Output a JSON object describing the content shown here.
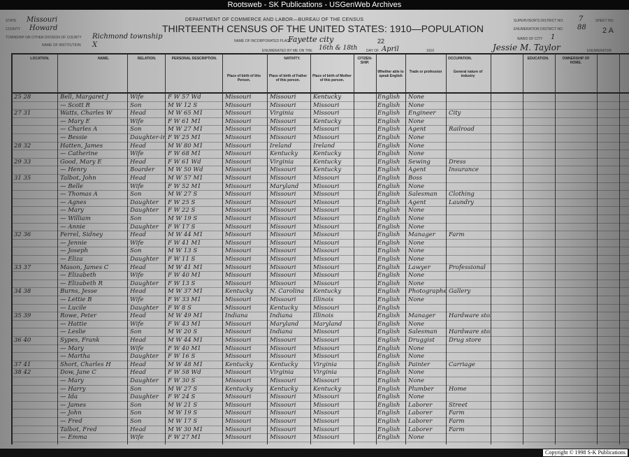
{
  "window": {
    "title": "Rootsweb - SK Publications - USGenWeb Archives",
    "copyright": "Copyright © 1998 S-K Publications"
  },
  "form": {
    "department": "DEPARTMENT OF COMMERCE AND LABOR—BUREAU OF THE CENSUS",
    "title": "THIRTEENTH CENSUS OF THE UNITED STATES: 1910—POPULATION",
    "state_label": "STATE",
    "state": "Missouri",
    "county_label": "COUNTY",
    "county": "Howard",
    "township_label": "TOWNSHIP OR OTHER DIVISION OF COUNTY",
    "township": "Richmond township",
    "institution_label": "NAME OF INSTITUTION",
    "institution": "X",
    "place_label": "NAME OF INCORPORATED PLACE",
    "place": "Fayette city",
    "page_number": "22",
    "enumerated_label": "ENUMERATED BY ME ON THE",
    "enumerated_days": "16th & 18th",
    "day_of_label": "DAY OF",
    "month": "April",
    "year": "1910",
    "enumerator": "Jessie M. Taylor",
    "enumerator_label": "ENUMERATOR",
    "supervisor_label": "SUPERVISOR'S DISTRICT NO.",
    "supervisor": "7",
    "ed_label": "ENUMERATION DISTRICT NO.",
    "ed": "88",
    "ward_label": "WARD OF CITY",
    "ward": "1",
    "sheet_label": "SHEET NO.",
    "sheet": "2 A"
  },
  "headers": {
    "location": "LOCATION.",
    "name": "NAME.",
    "relation": "RELATION.",
    "personal": "PERSONAL DESCRIPTION.",
    "nativity": "NATIVITY.",
    "citizenship": "CITIZEN-SHIP.",
    "language": "Whether able to speak English",
    "occupation": "OCCUPATION.",
    "education": "EDUCATION.",
    "ownership": "OWNERSHIP OF HOME.",
    "nat_person": "Place of birth of this Person.",
    "nat_father": "Place of birth of Father of this person.",
    "nat_mother": "Place of birth of Mother of this person.",
    "trade": "Trade or profession",
    "industry": "General nature of industry"
  },
  "rows": [
    [
      "25 28",
      "Bell, Margaret J",
      "Wife",
      "F W 57 Wd",
      "Missouri",
      "Missouri",
      "Kentucky",
      "English",
      "None",
      ""
    ],
    [
      "",
      "— Scott R",
      "Son",
      "M W 12 S",
      "Missouri",
      "Missouri",
      "Missouri",
      "English",
      "None",
      ""
    ],
    [
      "27 31",
      "Watts, Charles W",
      "Head",
      "M W 65 M1",
      "Missouri",
      "Virginia",
      "Missouri",
      "English",
      "Engineer",
      "City"
    ],
    [
      "",
      "— Mary E",
      "Wife",
      "F W 61 M1",
      "Missouri",
      "Missouri",
      "Kentucky",
      "English",
      "None",
      ""
    ],
    [
      "",
      "— Charles A",
      "Son",
      "M W 27 M1",
      "Missouri",
      "Missouri",
      "Missouri",
      "English",
      "Agent",
      "Railroad"
    ],
    [
      "",
      "— Bessie",
      "Daughter-in-law",
      "F W 25 M1",
      "Missouri",
      "Missouri",
      "Missouri",
      "English",
      "None",
      ""
    ],
    [
      "28 32",
      "Hatten, James",
      "Head",
      "M W 80 M1",
      "Missouri",
      "Ireland",
      "Ireland",
      "English",
      "None",
      ""
    ],
    [
      "",
      "— Catherine",
      "Wife",
      "F W 68 M1",
      "Missouri",
      "Kentucky",
      "Kentucky",
      "English",
      "None",
      ""
    ],
    [
      "29 33",
      "Good, Mary E",
      "Head",
      "F W 61 Wd",
      "Missouri",
      "Virginia",
      "Kentucky",
      "English",
      "Sewing",
      "Dress"
    ],
    [
      "",
      "— Henry",
      "Boarder",
      "M W 50 Wd",
      "Missouri",
      "Missouri",
      "Kentucky",
      "English",
      "Agent",
      "Insurance"
    ],
    [
      "31 35",
      "Talbot, John",
      "Head",
      "M W 57 M1",
      "Missouri",
      "Missouri",
      "Missouri",
      "English",
      "Boss",
      ""
    ],
    [
      "",
      "— Belle",
      "Wife",
      "F W 52 M1",
      "Missouri",
      "Maryland",
      "Missouri",
      "English",
      "None",
      ""
    ],
    [
      "",
      "— Thomas A",
      "Son",
      "M W 27 S",
      "Missouri",
      "Missouri",
      "Missouri",
      "English",
      "Salesman",
      "Clothing"
    ],
    [
      "",
      "— Agnes",
      "Daughter",
      "F W 25 S",
      "Missouri",
      "Missouri",
      "Missouri",
      "English",
      "Agent",
      "Laundry"
    ],
    [
      "",
      "— Mary",
      "Daughter",
      "F W 22 S",
      "Missouri",
      "Missouri",
      "Missouri",
      "English",
      "None",
      ""
    ],
    [
      "",
      "— William",
      "Son",
      "M W 19 S",
      "Missouri",
      "Missouri",
      "Missouri",
      "English",
      "None",
      ""
    ],
    [
      "",
      "— Annie",
      "Daughter",
      "F W 17 S",
      "Missouri",
      "Missouri",
      "Missouri",
      "English",
      "None",
      ""
    ],
    [
      "32 36",
      "Ferrel, Sidney",
      "Head",
      "M W 44 M1",
      "Missouri",
      "Missouri",
      "Missouri",
      "English",
      "Manager",
      "Farm"
    ],
    [
      "",
      "— Jennie",
      "Wife",
      "F W 41 M1",
      "Missouri",
      "Missouri",
      "Missouri",
      "English",
      "None",
      ""
    ],
    [
      "",
      "— Joseph",
      "Son",
      "M W 13 S",
      "Missouri",
      "Missouri",
      "Missouri",
      "English",
      "None",
      ""
    ],
    [
      "",
      "— Eliza",
      "Daughter",
      "F W 11 S",
      "Missouri",
      "Missouri",
      "Missouri",
      "English",
      "None",
      ""
    ],
    [
      "33 37",
      "Mason, James C",
      "Head",
      "M W 41 M1",
      "Missouri",
      "Missouri",
      "Missouri",
      "English",
      "Lawyer",
      "Professional"
    ],
    [
      "",
      "— Elizabeth",
      "Wife",
      "F W 40 M1",
      "Missouri",
      "Missouri",
      "Missouri",
      "English",
      "None",
      ""
    ],
    [
      "",
      "— Elizabeth R",
      "Daughter",
      "F W 13 S",
      "Missouri",
      "Missouri",
      "Missouri",
      "English",
      "None",
      ""
    ],
    [
      "34 38",
      "Burns, Jesse",
      "Head",
      "M W 37 M1",
      "Kentucky",
      "N. Carolina",
      "Kentucky",
      "English",
      "Photographer",
      "Gallery"
    ],
    [
      "",
      "— Lettie B",
      "Wife",
      "F W 33 M1",
      "Missouri",
      "Missouri",
      "Illinois",
      "English",
      "None",
      ""
    ],
    [
      "",
      "— Lucile",
      "Daughter",
      "F W 8 S",
      "Missouri",
      "Kentucky",
      "Missouri",
      "English",
      "",
      ""
    ],
    [
      "35 39",
      "Rowe, Peter",
      "Head",
      "M W 49 M1",
      "Indiana",
      "Indiana",
      "Illinois",
      "English",
      "Manager",
      "Hardware store"
    ],
    [
      "",
      "— Hattie",
      "Wife",
      "F W 43 M1",
      "Missouri",
      "Maryland",
      "Maryland",
      "English",
      "None",
      ""
    ],
    [
      "",
      "— Leslie",
      "Son",
      "M W 20 S",
      "Missouri",
      "Indiana",
      "Missouri",
      "English",
      "Salesman",
      "Hardware store"
    ],
    [
      "36 40",
      "Sypes, Frank",
      "Head",
      "M W 44 M1",
      "Missouri",
      "Missouri",
      "Missouri",
      "English",
      "Druggist",
      "Drug store"
    ],
    [
      "",
      "— Mary",
      "Wife",
      "F W 40 M1",
      "Missouri",
      "Missouri",
      "Missouri",
      "English",
      "None",
      ""
    ],
    [
      "",
      "— Martha",
      "Daughter",
      "F W 16 S",
      "Missouri",
      "Missouri",
      "Missouri",
      "English",
      "None",
      ""
    ],
    [
      "37 41",
      "Short, Charles H",
      "Head",
      "M W 48 M1",
      "Kentucky",
      "Kentucky",
      "Virginia",
      "English",
      "Painter",
      "Carriage"
    ],
    [
      "38 42",
      "Dow, Jane C",
      "Head",
      "F W 58 Wd",
      "Missouri",
      "Virginia",
      "Virginia",
      "English",
      "None",
      ""
    ],
    [
      "",
      "— Mary",
      "Daughter",
      "F W 30 S",
      "Missouri",
      "Missouri",
      "Missouri",
      "English",
      "None",
      ""
    ],
    [
      "",
      "— Harry",
      "Son",
      "M W 27 S",
      "Kentucky",
      "Kentucky",
      "Kentucky",
      "English",
      "Plumber",
      "Home"
    ],
    [
      "",
      "— Ida",
      "Daughter",
      "F W 24 S",
      "Missouri",
      "Missouri",
      "Missouri",
      "English",
      "None",
      ""
    ],
    [
      "",
      "— James",
      "Son",
      "M W 21 S",
      "Missouri",
      "Missouri",
      "Missouri",
      "English",
      "Laborer",
      "Street"
    ],
    [
      "",
      "— John",
      "Son",
      "M W 19 S",
      "Missouri",
      "Missouri",
      "Missouri",
      "English",
      "Laborer",
      "Farm"
    ],
    [
      "",
      "— Fred",
      "Son",
      "M W 17 S",
      "Missouri",
      "Missouri",
      "Missouri",
      "English",
      "Laborer",
      "Farm"
    ],
    [
      "",
      "Talbot, Fred",
      "Head",
      "M W 30 M1",
      "Missouri",
      "Missouri",
      "Missouri",
      "English",
      "Laborer",
      "Farm"
    ],
    [
      "",
      "— Emma",
      "Wife",
      "F W 27 M1",
      "Missouri",
      "Missouri",
      "Missouri",
      "English",
      "None",
      ""
    ]
  ]
}
